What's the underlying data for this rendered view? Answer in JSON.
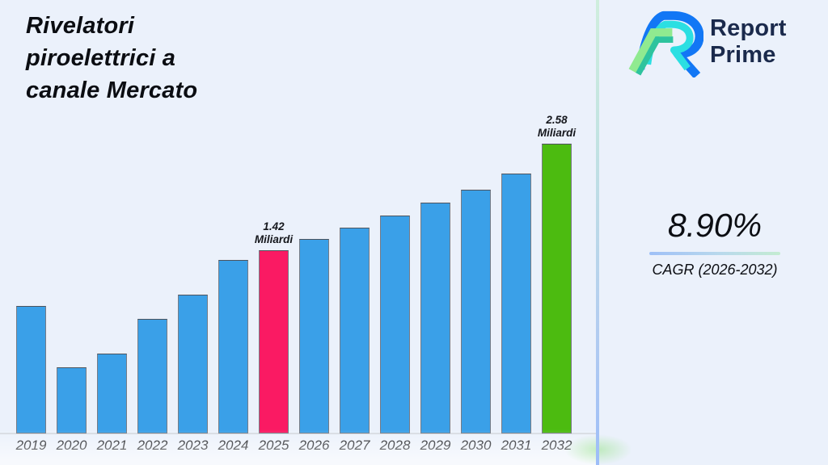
{
  "theme": {
    "background": "#ebf1fb",
    "divider_gradient_top": "#cfeedd",
    "divider_gradient_bottom": "#9dbdf8",
    "text_dark": "#0c0e13",
    "logo_navy": "#1b2a4c"
  },
  "header": {
    "title": "Rivelatori piroelettrici a canale Mercato",
    "title_lines": [
      "Rivelatori",
      "piroelettrici a",
      "canale Mercato"
    ]
  },
  "logo": {
    "name": "Report Prime",
    "line1": "Report",
    "line2": "Prime"
  },
  "stats": {
    "cagr_value": "8.90%",
    "cagr_label": "CAGR (2026-2032)"
  },
  "chart_data": {
    "type": "bar",
    "title": "Rivelatori piroelettrici a canale Mercato",
    "unit": "Miliardi",
    "categories": [
      "2019",
      "2020",
      "2021",
      "2022",
      "2023",
      "2024",
      "2025",
      "2026",
      "2027",
      "2028",
      "2029",
      "2030",
      "2031",
      "2032"
    ],
    "values": [
      0.82,
      0.15,
      0.3,
      0.68,
      0.94,
      1.32,
      1.42,
      1.55,
      1.67,
      1.8,
      1.94,
      2.08,
      2.26,
      2.58
    ],
    "value_axis_range": [
      -0.57,
      2.9
    ],
    "grid": false,
    "legend": false,
    "x_axis_labels_visible": true,
    "y_axis_labels_visible": false,
    "data_labels": [
      {
        "index": 6,
        "category": "2025",
        "value_text": "1.42",
        "unit_text": "Miliardi"
      },
      {
        "index": 13,
        "category": "2032",
        "value_text": "2.58",
        "unit_text": "Miliardi"
      }
    ],
    "colors": {
      "bar_default": "#3aa0e8",
      "bar_highlight_2025": "#fa1a63",
      "bar_highlight_2032": "#4cbb10"
    },
    "highlights": {
      "6": "#fa1a63",
      "13": "#4cbb10"
    }
  }
}
